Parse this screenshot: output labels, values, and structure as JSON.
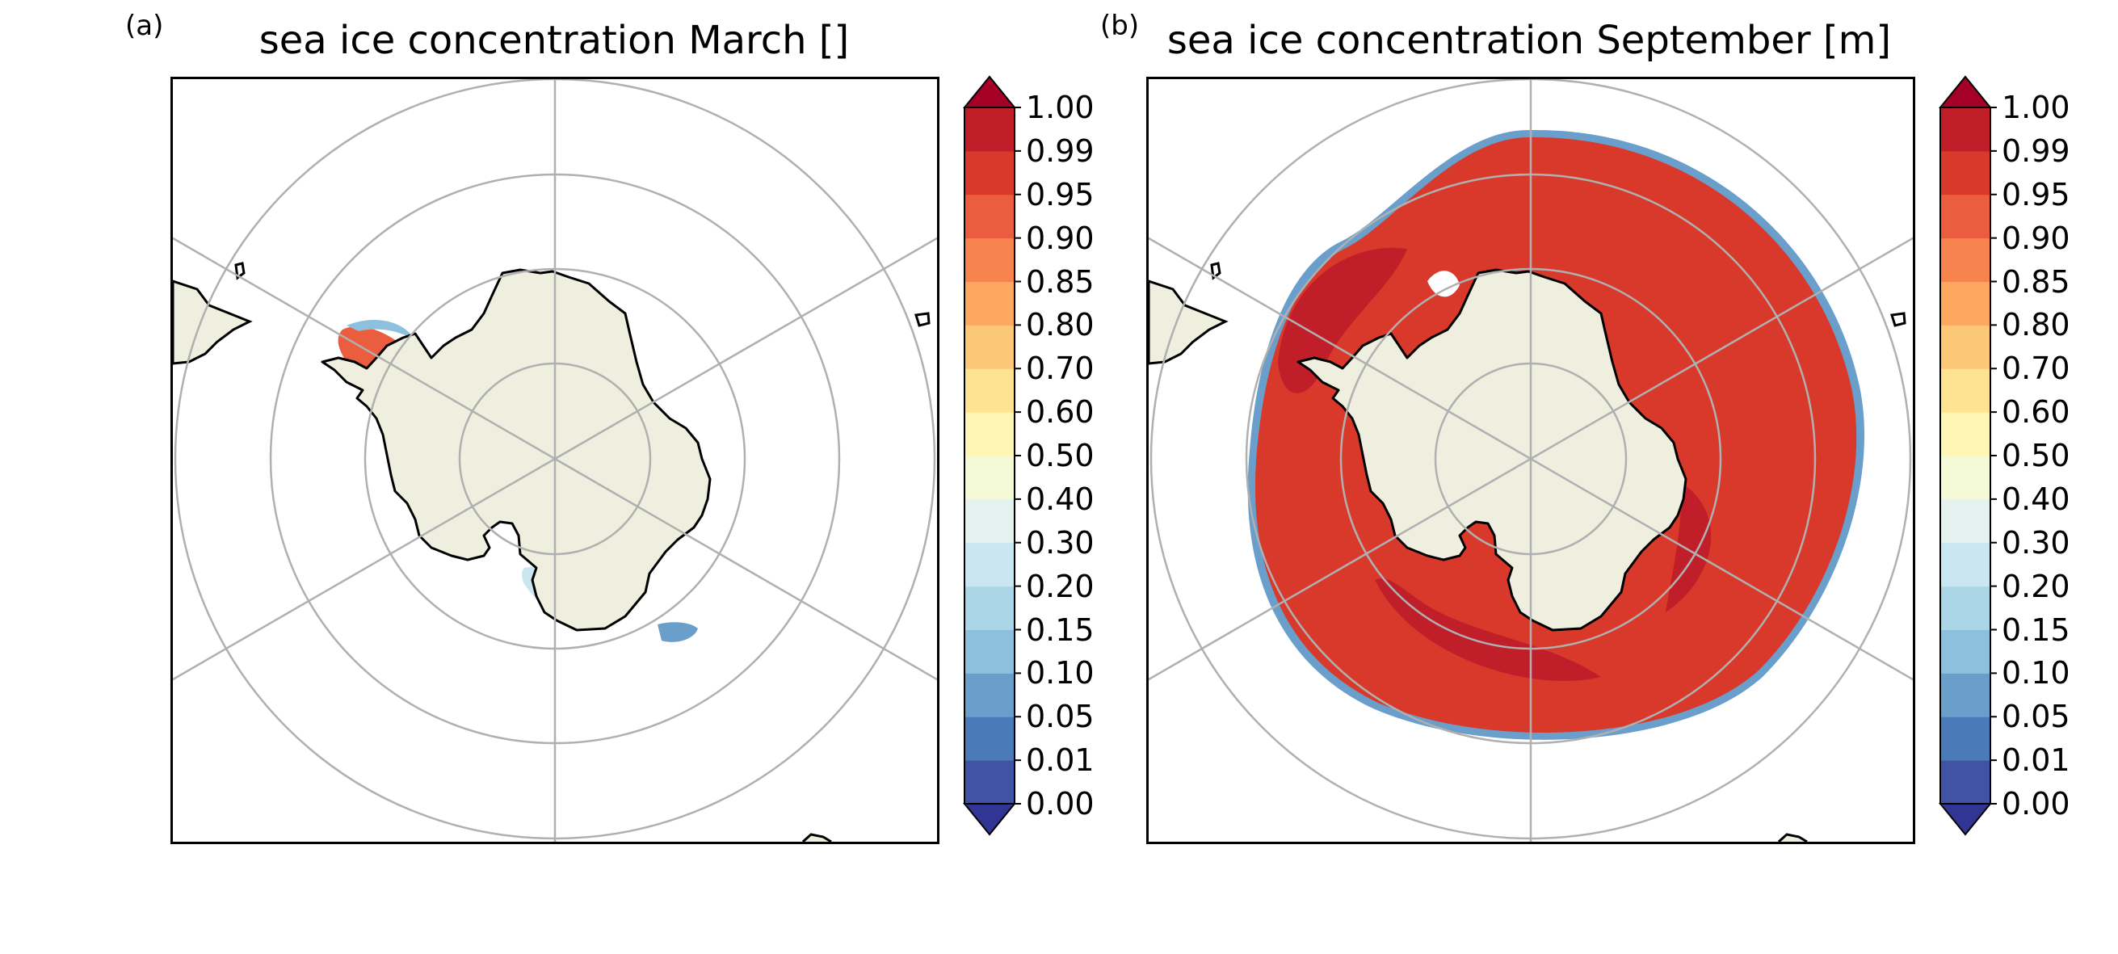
{
  "panels": [
    {
      "letter": "(a)",
      "title": "sea ice concentration March []",
      "map_data": {
        "month": "March",
        "projection": "south-polar-stereographic",
        "parallel_circles": 4,
        "meridian_lines": 6,
        "ice_regions": [
          {
            "name": "weddell-sea",
            "level": 0.9
          },
          {
            "name": "ross-sea",
            "level": 0.2
          },
          {
            "name": "east-coast",
            "level": 0.05
          }
        ]
      }
    },
    {
      "letter": "(b)",
      "title": "sea ice concentration September [m]",
      "map_data": {
        "month": "September",
        "projection": "south-polar-stereographic",
        "parallel_circles": 4,
        "meridian_lines": 6,
        "ice_regions": [
          {
            "name": "circumpolar-pack",
            "level": 0.95
          },
          {
            "name": "inner-pack",
            "level": 0.99
          },
          {
            "name": "ice-edge",
            "level": 0.05
          }
        ]
      }
    }
  ],
  "colorbar": {
    "ticks": [
      "0.00",
      "0.01",
      "0.05",
      "0.10",
      "0.15",
      "0.20",
      "0.30",
      "0.40",
      "0.50",
      "0.60",
      "0.70",
      "0.80",
      "0.85",
      "0.90",
      "0.95",
      "0.99",
      "1.00"
    ],
    "colors": [
      "#4053a5",
      "#4a7ab7",
      "#6a9fcb",
      "#8dc0dc",
      "#abd6e8",
      "#cae6f0",
      "#e4f2f0",
      "#f4f9d6",
      "#fdf6b5",
      "#fee491",
      "#fdc778",
      "#fca85e",
      "#f7844e",
      "#ea5d3e",
      "#d8392b",
      "#c01f2a"
    ],
    "under_color": "#313695",
    "over_color": "#a50026"
  },
  "colors": {
    "land": "#efefdf",
    "coast": "#000000",
    "grid": "#b0b0b0"
  }
}
